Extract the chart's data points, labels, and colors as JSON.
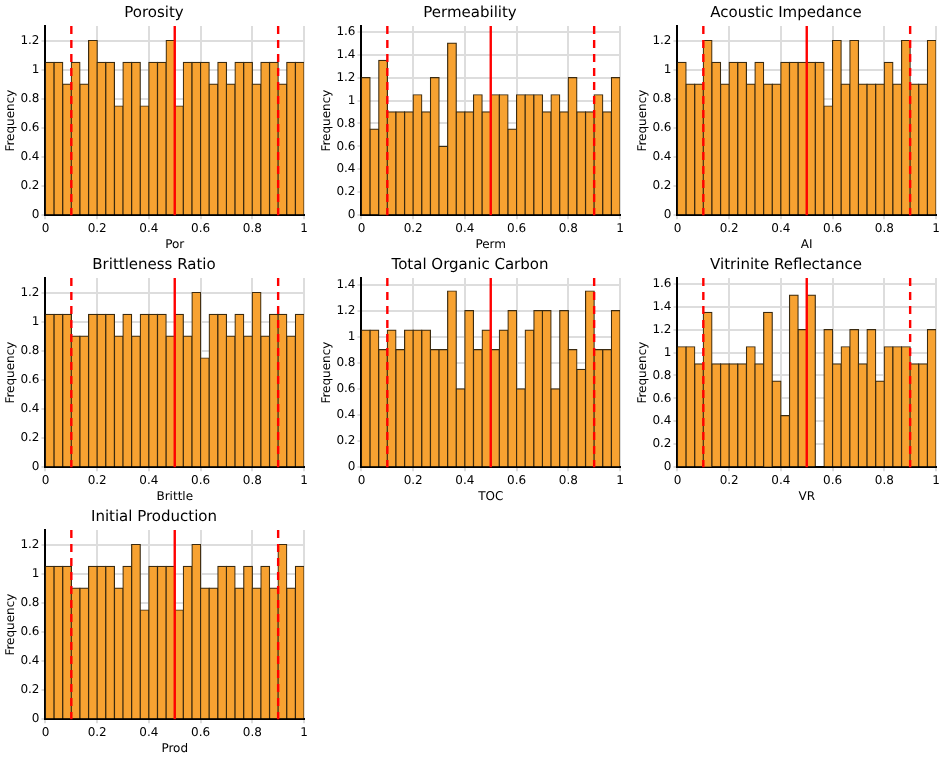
{
  "chart_data": [
    {
      "type": "histogram",
      "title": "Porosity",
      "xlabel": "Por",
      "ylabel": "Frequency",
      "color": "#f7a231",
      "bins": [
        0,
        0.033,
        0.067,
        0.1,
        0.133,
        0.167,
        0.2,
        0.233,
        0.267,
        0.3,
        0.333,
        0.367,
        0.4,
        0.433,
        0.467,
        0.5,
        0.533,
        0.567,
        0.6,
        0.633,
        0.667,
        0.7,
        0.733,
        0.767,
        0.8,
        0.833,
        0.867,
        0.9,
        0.933,
        0.967,
        1
      ],
      "values": [
        1.05,
        1.05,
        0.9,
        1.05,
        0.9,
        1.2,
        1.05,
        1.05,
        0.75,
        1.05,
        1.05,
        0.75,
        1.05,
        1.05,
        1.2,
        0.75,
        1.05,
        1.05,
        1.05,
        0.9,
        1.05,
        0.9,
        1.05,
        1.05,
        0.9,
        1.05,
        1.05,
        0.9,
        1.05,
        1.05
      ],
      "xlim": [
        0,
        1
      ],
      "xticks": [
        0,
        0.2,
        0.4,
        0.6,
        0.8,
        1
      ],
      "ylim": [
        0,
        1.3
      ],
      "yticks": [
        0,
        0.2,
        0.4,
        0.6,
        0.8,
        1,
        1.2
      ],
      "grid": true,
      "ref_lines": [
        {
          "axis": "x",
          "value": 0.1,
          "color": "#ff0000",
          "line_style": "dashed"
        },
        {
          "axis": "x",
          "value": 0.5,
          "color": "#ff0000",
          "line_style": "solid"
        },
        {
          "axis": "x",
          "value": 0.9,
          "color": "#ff0000",
          "line_style": "dashed"
        }
      ]
    },
    {
      "type": "histogram",
      "title": "Permeability",
      "xlabel": "Perm",
      "ylabel": "Frequency",
      "color": "#f7a231",
      "bins": [
        0,
        0.033,
        0.067,
        0.1,
        0.133,
        0.167,
        0.2,
        0.233,
        0.267,
        0.3,
        0.333,
        0.367,
        0.4,
        0.433,
        0.467,
        0.5,
        0.533,
        0.567,
        0.6,
        0.633,
        0.667,
        0.7,
        0.733,
        0.767,
        0.8,
        0.833,
        0.867,
        0.9,
        0.933,
        0.967,
        1
      ],
      "values": [
        1.2,
        0.75,
        1.35,
        0.9,
        0.9,
        0.9,
        1.05,
        0.9,
        1.2,
        0.6,
        1.5,
        0.9,
        0.9,
        1.05,
        0.9,
        1.05,
        1.05,
        0.75,
        1.05,
        1.05,
        1.05,
        0.9,
        1.05,
        0.9,
        1.2,
        0.9,
        0.9,
        1.05,
        0.9,
        1.2
      ],
      "xlim": [
        0,
        1
      ],
      "xticks": [
        0,
        0.2,
        0.4,
        0.6,
        0.8,
        1
      ],
      "ylim": [
        0,
        1.65
      ],
      "yticks": [
        0,
        0.2,
        0.4,
        0.6,
        0.8,
        1,
        1.2,
        1.4,
        1.6
      ],
      "grid": true,
      "ref_lines": [
        {
          "axis": "x",
          "value": 0.1,
          "color": "#ff0000",
          "line_style": "dashed"
        },
        {
          "axis": "x",
          "value": 0.5,
          "color": "#ff0000",
          "line_style": "solid"
        },
        {
          "axis": "x",
          "value": 0.9,
          "color": "#ff0000",
          "line_style": "dashed"
        }
      ]
    },
    {
      "type": "histogram",
      "title": "Acoustic Impedance",
      "xlabel": "AI",
      "ylabel": "Frequency",
      "color": "#f7a231",
      "bins": [
        0,
        0.033,
        0.067,
        0.1,
        0.133,
        0.167,
        0.2,
        0.233,
        0.267,
        0.3,
        0.333,
        0.367,
        0.4,
        0.433,
        0.467,
        0.5,
        0.533,
        0.567,
        0.6,
        0.633,
        0.667,
        0.7,
        0.733,
        0.767,
        0.8,
        0.833,
        0.867,
        0.9,
        0.933,
        0.967,
        1
      ],
      "values": [
        1.05,
        0.9,
        0.9,
        1.2,
        1.05,
        0.9,
        1.05,
        1.05,
        0.9,
        1.05,
        0.9,
        0.9,
        1.05,
        1.05,
        1.05,
        1.05,
        1.05,
        0.75,
        1.2,
        0.9,
        1.2,
        0.9,
        0.9,
        0.9,
        1.05,
        0.9,
        1.2,
        0.9,
        0.9,
        1.2
      ],
      "xlim": [
        0,
        1
      ],
      "xticks": [
        0,
        0.2,
        0.4,
        0.6,
        0.8,
        1
      ],
      "ylim": [
        0,
        1.3
      ],
      "yticks": [
        0,
        0.2,
        0.4,
        0.6,
        0.8,
        1,
        1.2
      ],
      "grid": true,
      "ref_lines": [
        {
          "axis": "x",
          "value": 0.1,
          "color": "#ff0000",
          "line_style": "dashed"
        },
        {
          "axis": "x",
          "value": 0.5,
          "color": "#ff0000",
          "line_style": "solid"
        },
        {
          "axis": "x",
          "value": 0.9,
          "color": "#ff0000",
          "line_style": "dashed"
        }
      ]
    },
    {
      "type": "histogram",
      "title": "Brittleness Ratio",
      "xlabel": "Brittle",
      "ylabel": "Frequency",
      "color": "#f7a231",
      "bins": [
        0,
        0.033,
        0.067,
        0.1,
        0.133,
        0.167,
        0.2,
        0.233,
        0.267,
        0.3,
        0.333,
        0.367,
        0.4,
        0.433,
        0.467,
        0.5,
        0.533,
        0.567,
        0.6,
        0.633,
        0.667,
        0.7,
        0.733,
        0.767,
        0.8,
        0.833,
        0.867,
        0.9,
        0.933,
        0.967,
        1
      ],
      "values": [
        1.05,
        1.05,
        1.05,
        0.9,
        0.9,
        1.05,
        1.05,
        1.05,
        0.9,
        1.05,
        0.9,
        1.05,
        1.05,
        1.05,
        0.9,
        1.05,
        0.9,
        1.2,
        0.75,
        1.05,
        1.05,
        0.9,
        1.05,
        0.9,
        1.2,
        0.9,
        1.05,
        1.05,
        0.9,
        1.05
      ],
      "xlim": [
        0,
        1
      ],
      "xticks": [
        0,
        0.2,
        0.4,
        0.6,
        0.8,
        1
      ],
      "ylim": [
        0,
        1.3
      ],
      "yticks": [
        0,
        0.2,
        0.4,
        0.6,
        0.8,
        1,
        1.2
      ],
      "grid": true,
      "ref_lines": [
        {
          "axis": "x",
          "value": 0.1,
          "color": "#ff0000",
          "line_style": "dashed"
        },
        {
          "axis": "x",
          "value": 0.5,
          "color": "#ff0000",
          "line_style": "solid"
        },
        {
          "axis": "x",
          "value": 0.9,
          "color": "#ff0000",
          "line_style": "dashed"
        }
      ]
    },
    {
      "type": "histogram",
      "title": "Total Organic Carbon",
      "xlabel": "TOC",
      "ylabel": "Frequency",
      "color": "#f7a231",
      "bins": [
        0,
        0.033,
        0.067,
        0.1,
        0.133,
        0.167,
        0.2,
        0.233,
        0.267,
        0.3,
        0.333,
        0.367,
        0.4,
        0.433,
        0.467,
        0.5,
        0.533,
        0.567,
        0.6,
        0.633,
        0.667,
        0.7,
        0.733,
        0.767,
        0.8,
        0.833,
        0.867,
        0.9,
        0.933,
        0.967,
        1
      ],
      "values": [
        1.05,
        1.05,
        0.9,
        1.05,
        0.9,
        1.05,
        1.05,
        1.05,
        0.9,
        0.9,
        1.35,
        0.6,
        1.2,
        0.9,
        1.05,
        0.9,
        1.05,
        1.2,
        0.6,
        1.05,
        1.2,
        1.2,
        0.6,
        1.2,
        0.9,
        0.75,
        1.35,
        0.9,
        0.9,
        1.2
      ],
      "xlim": [
        0,
        1
      ],
      "xticks": [
        0,
        0.2,
        0.4,
        0.6,
        0.8,
        1
      ],
      "ylim": [
        0,
        1.45
      ],
      "yticks": [
        0,
        0.2,
        0.4,
        0.6,
        0.8,
        1,
        1.2,
        1.4
      ],
      "grid": true,
      "ref_lines": [
        {
          "axis": "x",
          "value": 0.1,
          "color": "#ff0000",
          "line_style": "dashed"
        },
        {
          "axis": "x",
          "value": 0.5,
          "color": "#ff0000",
          "line_style": "solid"
        },
        {
          "axis": "x",
          "value": 0.9,
          "color": "#ff0000",
          "line_style": "dashed"
        }
      ]
    },
    {
      "type": "histogram",
      "title": "Vitrinite Reflectance",
      "xlabel": "VR",
      "ylabel": "Frequency",
      "color": "#f7a231",
      "bins": [
        0,
        0.033,
        0.067,
        0.1,
        0.133,
        0.167,
        0.2,
        0.233,
        0.267,
        0.3,
        0.333,
        0.367,
        0.4,
        0.433,
        0.467,
        0.5,
        0.533,
        0.567,
        0.6,
        0.633,
        0.667,
        0.7,
        0.733,
        0.767,
        0.8,
        0.833,
        0.867,
        0.9,
        0.933,
        0.967,
        1
      ],
      "values": [
        1.05,
        1.05,
        0.9,
        1.35,
        0.9,
        0.9,
        0.9,
        0.9,
        1.05,
        0.9,
        1.35,
        0.75,
        0.45,
        1.5,
        1.2,
        1.5,
        0,
        1.2,
        0.9,
        1.05,
        1.2,
        0.9,
        1.2,
        0.75,
        1.05,
        1.05,
        1.05,
        0.9,
        0.9,
        1.2
      ],
      "xlim": [
        0,
        1
      ],
      "xticks": [
        0,
        0.2,
        0.4,
        0.6,
        0.8,
        1
      ],
      "ylim": [
        0,
        1.65
      ],
      "yticks": [
        0,
        0.2,
        0.4,
        0.6,
        0.8,
        1,
        1.2,
        1.4,
        1.6
      ],
      "grid": true,
      "ref_lines": [
        {
          "axis": "x",
          "value": 0.1,
          "color": "#ff0000",
          "line_style": "dashed"
        },
        {
          "axis": "x",
          "value": 0.5,
          "color": "#ff0000",
          "line_style": "solid"
        },
        {
          "axis": "x",
          "value": 0.9,
          "color": "#ff0000",
          "line_style": "dashed"
        }
      ]
    },
    {
      "type": "histogram",
      "title": "Initial Production",
      "xlabel": "Prod",
      "ylabel": "Frequency",
      "color": "#f7a231",
      "bins": [
        0,
        0.033,
        0.067,
        0.1,
        0.133,
        0.167,
        0.2,
        0.233,
        0.267,
        0.3,
        0.333,
        0.367,
        0.4,
        0.433,
        0.467,
        0.5,
        0.533,
        0.567,
        0.6,
        0.633,
        0.667,
        0.7,
        0.733,
        0.767,
        0.8,
        0.833,
        0.867,
        0.9,
        0.933,
        0.967,
        1
      ],
      "values": [
        1.05,
        1.05,
        1.05,
        0.9,
        0.9,
        1.05,
        1.05,
        1.05,
        0.9,
        1.05,
        1.2,
        0.75,
        1.05,
        1.05,
        1.05,
        0.75,
        1.05,
        1.2,
        0.9,
        0.9,
        1.05,
        1.05,
        0.9,
        1.05,
        0.9,
        1.05,
        0.9,
        1.2,
        0.9,
        1.05
      ],
      "xlim": [
        0,
        1
      ],
      "xticks": [
        0,
        0.2,
        0.4,
        0.6,
        0.8,
        1
      ],
      "ylim": [
        0,
        1.3
      ],
      "yticks": [
        0,
        0.2,
        0.4,
        0.6,
        0.8,
        1,
        1.2
      ],
      "grid": true,
      "ref_lines": [
        {
          "axis": "x",
          "value": 0.1,
          "color": "#ff0000",
          "line_style": "dashed"
        },
        {
          "axis": "x",
          "value": 0.5,
          "color": "#ff0000",
          "line_style": "solid"
        },
        {
          "axis": "x",
          "value": 0.9,
          "color": "#ff0000",
          "line_style": "dashed"
        }
      ]
    }
  ]
}
